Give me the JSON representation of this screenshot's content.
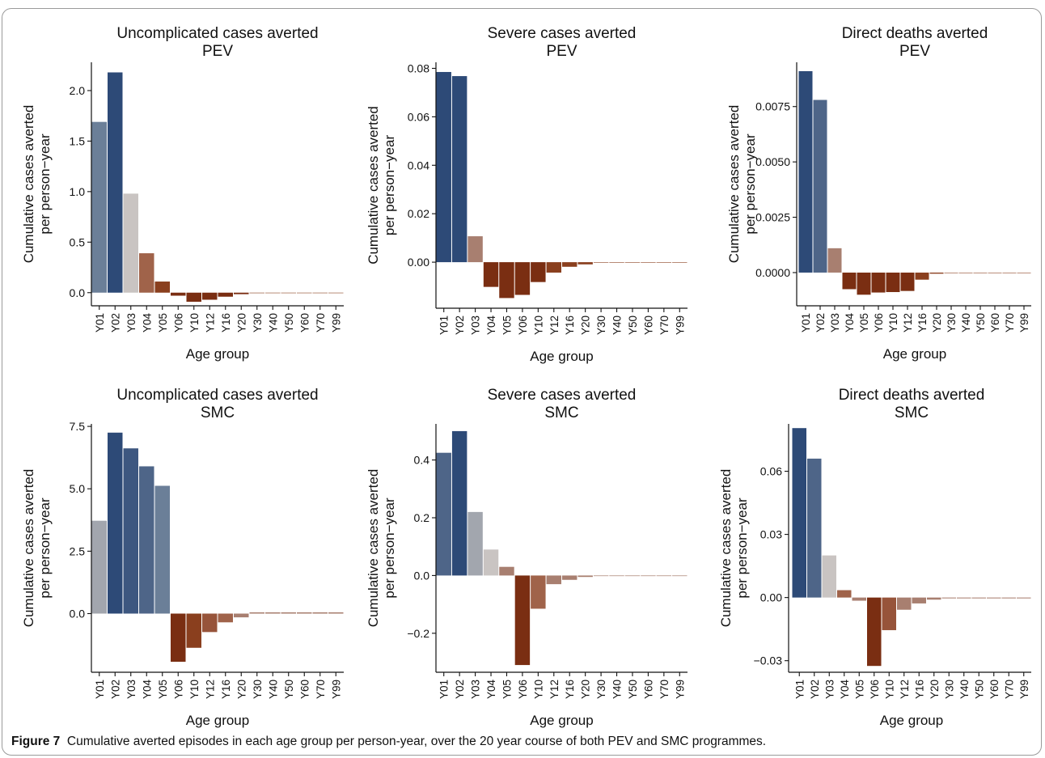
{
  "caption": {
    "label": "Figure 7",
    "text": "Cumulative averted episodes in each age group per person-year, over the 20 year course of both PEV and SMC programmes."
  },
  "chart_data": [
    {
      "type": "bar",
      "title": "Uncomplicated cases averted",
      "subtitle": "PEV",
      "xlabel": "Age group",
      "ylabel": "Cumulative cases averted per person−year",
      "categories": [
        "Y01",
        "Y02",
        "Y03",
        "Y04",
        "Y05",
        "Y06",
        "Y10",
        "Y12",
        "Y16",
        "Y20",
        "Y30",
        "Y40",
        "Y50",
        "Y60",
        "Y70",
        "Y99"
      ],
      "values": [
        1.69,
        2.18,
        0.98,
        0.39,
        0.11,
        -0.03,
        -0.09,
        -0.07,
        -0.04,
        -0.015,
        -0.005,
        -0.003,
        -0.002,
        -0.002,
        -0.001,
        -0.001
      ],
      "colors": [
        "#6b7f98",
        "#2d4a77",
        "#c9c4c2",
        "#a0634a",
        "#8a3f1e",
        "#7a2e12",
        "#7a2e12",
        "#7a2e12",
        "#7a2e12",
        "#7a2e12",
        "#8a3f1e",
        "#8a3f1e",
        "#8a3f1e",
        "#8a3f1e",
        "#8a3f1e",
        "#8a3f1e"
      ],
      "yticks": [
        0.0,
        0.5,
        1.0,
        1.5,
        2.0
      ],
      "ytick_labels": [
        "0.0",
        "0.5",
        "1.0",
        "1.5",
        "2.0"
      ],
      "ylim": [
        -0.13,
        2.28
      ]
    },
    {
      "type": "bar",
      "title": "Severe cases averted",
      "subtitle": "PEV",
      "xlabel": "Age group",
      "ylabel": "Cumulative cases averted per person−year",
      "categories": [
        "Y01",
        "Y02",
        "Y03",
        "Y04",
        "Y05",
        "Y06",
        "Y10",
        "Y12",
        "Y16",
        "Y20",
        "Y30",
        "Y40",
        "Y50",
        "Y60",
        "Y70",
        "Y99"
      ],
      "values": [
        0.0785,
        0.0768,
        0.0107,
        -0.0102,
        -0.0148,
        -0.0135,
        -0.0082,
        -0.0043,
        -0.0019,
        -0.0009,
        -0.0002,
        -0.0001,
        -0.0001,
        -0.0001,
        -0.0001,
        -0.0001
      ],
      "colors": [
        "#2d4a77",
        "#2d4a77",
        "#a87f70",
        "#7a2e12",
        "#7a2e12",
        "#7a2e12",
        "#7a2e12",
        "#8a3f1e",
        "#8a3f1e",
        "#8a3f1e",
        "#8a3f1e",
        "#8a3f1e",
        "#8a3f1e",
        "#8a3f1e",
        "#8a3f1e",
        "#8a3f1e"
      ],
      "yticks": [
        0.0,
        0.02,
        0.04,
        0.06,
        0.08
      ],
      "ytick_labels": [
        "0.00",
        "0.02",
        "0.04",
        "0.06",
        "0.08"
      ],
      "ylim": [
        -0.019,
        0.0825
      ]
    },
    {
      "type": "bar",
      "title": "Direct deaths averted",
      "subtitle": "PEV",
      "xlabel": "Age group",
      "ylabel": "Cumulative cases averted per person−year",
      "categories": [
        "Y01",
        "Y02",
        "Y03",
        "Y04",
        "Y05",
        "Y06",
        "Y10",
        "Y12",
        "Y16",
        "Y20",
        "Y30",
        "Y40",
        "Y50",
        "Y60",
        "Y70",
        "Y99"
      ],
      "values": [
        0.0091,
        0.0078,
        0.0011,
        -0.00075,
        -0.001,
        -0.0009,
        -0.00088,
        -0.00083,
        -0.00032,
        -5e-05,
        -2e-05,
        -1e-05,
        -1e-05,
        -1e-05,
        -1e-05,
        -1e-05
      ],
      "colors": [
        "#2d4a77",
        "#4e6588",
        "#a87f70",
        "#7a2e12",
        "#7a2e12",
        "#7a2e12",
        "#7a2e12",
        "#7a2e12",
        "#8a3f1e",
        "#8a3f1e",
        "#8a3f1e",
        "#8a3f1e",
        "#8a3f1e",
        "#8a3f1e",
        "#8a3f1e",
        "#8a3f1e"
      ],
      "yticks": [
        0.0,
        0.0025,
        0.005,
        0.0075
      ],
      "ytick_labels": [
        "0.0000",
        "0.0025",
        "0.0050",
        "0.0075"
      ],
      "ylim": [
        -0.0015,
        0.0095
      ]
    },
    {
      "type": "bar",
      "title": "Uncomplicated cases averted",
      "subtitle": "SMC",
      "xlabel": "Age group",
      "ylabel": "Cumulative cases averted per person−year",
      "categories": [
        "Y01",
        "Y02",
        "Y03",
        "Y04",
        "Y05",
        "Y06",
        "Y10",
        "Y12",
        "Y16",
        "Y20",
        "Y30",
        "Y40",
        "Y50",
        "Y60",
        "Y70",
        "Y99"
      ],
      "values": [
        3.72,
        7.25,
        6.62,
        5.9,
        5.12,
        -1.93,
        -1.37,
        -0.74,
        -0.35,
        -0.15,
        0.05,
        0.05,
        0.05,
        0.05,
        0.05,
        0.05
      ],
      "colors": [
        "#a2a6ae",
        "#2d4a77",
        "#3d5780",
        "#4e6588",
        "#6b7f98",
        "#7a2e12",
        "#8a3f1e",
        "#97543a",
        "#a0634a",
        "#a87f70",
        "#a87f70",
        "#a87f70",
        "#a87f70",
        "#a87f70",
        "#a87f70",
        "#a87f70"
      ],
      "yticks": [
        0.0,
        2.5,
        5.0,
        7.5
      ],
      "ytick_labels": [
        "0.0",
        "2.5",
        "5.0",
        "7.5"
      ],
      "ylim": [
        -2.35,
        7.6
      ]
    },
    {
      "type": "bar",
      "title": "Severe cases averted",
      "subtitle": "SMC",
      "xlabel": "Age group",
      "ylabel": "Cumulative cases averted per person−year",
      "categories": [
        "Y01",
        "Y02",
        "Y03",
        "Y04",
        "Y05",
        "Y06",
        "Y10",
        "Y12",
        "Y16",
        "Y20",
        "Y30",
        "Y40",
        "Y50",
        "Y60",
        "Y70",
        "Y99"
      ],
      "values": [
        0.425,
        0.5,
        0.22,
        0.09,
        0.03,
        -0.31,
        -0.115,
        -0.03,
        -0.015,
        -0.005,
        -0.002,
        -0.002,
        -0.002,
        -0.002,
        -0.002,
        -0.002
      ],
      "colors": [
        "#4e6588",
        "#2d4a77",
        "#a2a6ae",
        "#c9c4c2",
        "#a87f70",
        "#7a2e12",
        "#a0634a",
        "#a87f70",
        "#a87f70",
        "#a87f70",
        "#a87f70",
        "#a87f70",
        "#a87f70",
        "#a87f70",
        "#a87f70",
        "#a87f70"
      ],
      "yticks": [
        -0.2,
        0.0,
        0.2,
        0.4
      ],
      "ytick_labels": [
        "−0.2",
        "0.0",
        "0.2",
        "0.4"
      ],
      "ylim": [
        -0.335,
        0.525
      ]
    },
    {
      "type": "bar",
      "title": "Direct deaths averted",
      "subtitle": "SMC",
      "xlabel": "Age group",
      "ylabel": "Cumulative cases averted per person−year",
      "categories": [
        "Y01",
        "Y02",
        "Y03",
        "Y04",
        "Y05",
        "Y06",
        "Y10",
        "Y12",
        "Y16",
        "Y20",
        "Y30",
        "Y40",
        "Y50",
        "Y60",
        "Y70",
        "Y99"
      ],
      "values": [
        0.0805,
        0.066,
        0.02,
        0.0035,
        -0.0015,
        -0.0325,
        -0.0155,
        -0.0058,
        -0.0028,
        -0.001,
        -0.0004,
        -0.0004,
        -0.0004,
        -0.0004,
        -0.0004,
        -0.0004
      ],
      "colors": [
        "#2d4a77",
        "#4e6588",
        "#c9c4c2",
        "#a0634a",
        "#a87f70",
        "#7a2e12",
        "#97543a",
        "#a87f70",
        "#a87f70",
        "#a87f70",
        "#a87f70",
        "#a87f70",
        "#a87f70",
        "#a87f70",
        "#a87f70",
        "#a87f70"
      ],
      "yticks": [
        -0.03,
        0.0,
        0.03,
        0.06
      ],
      "ytick_labels": [
        "−0.03",
        "0.00",
        "0.03",
        "0.06"
      ],
      "ylim": [
        -0.0355,
        0.0825
      ]
    }
  ]
}
